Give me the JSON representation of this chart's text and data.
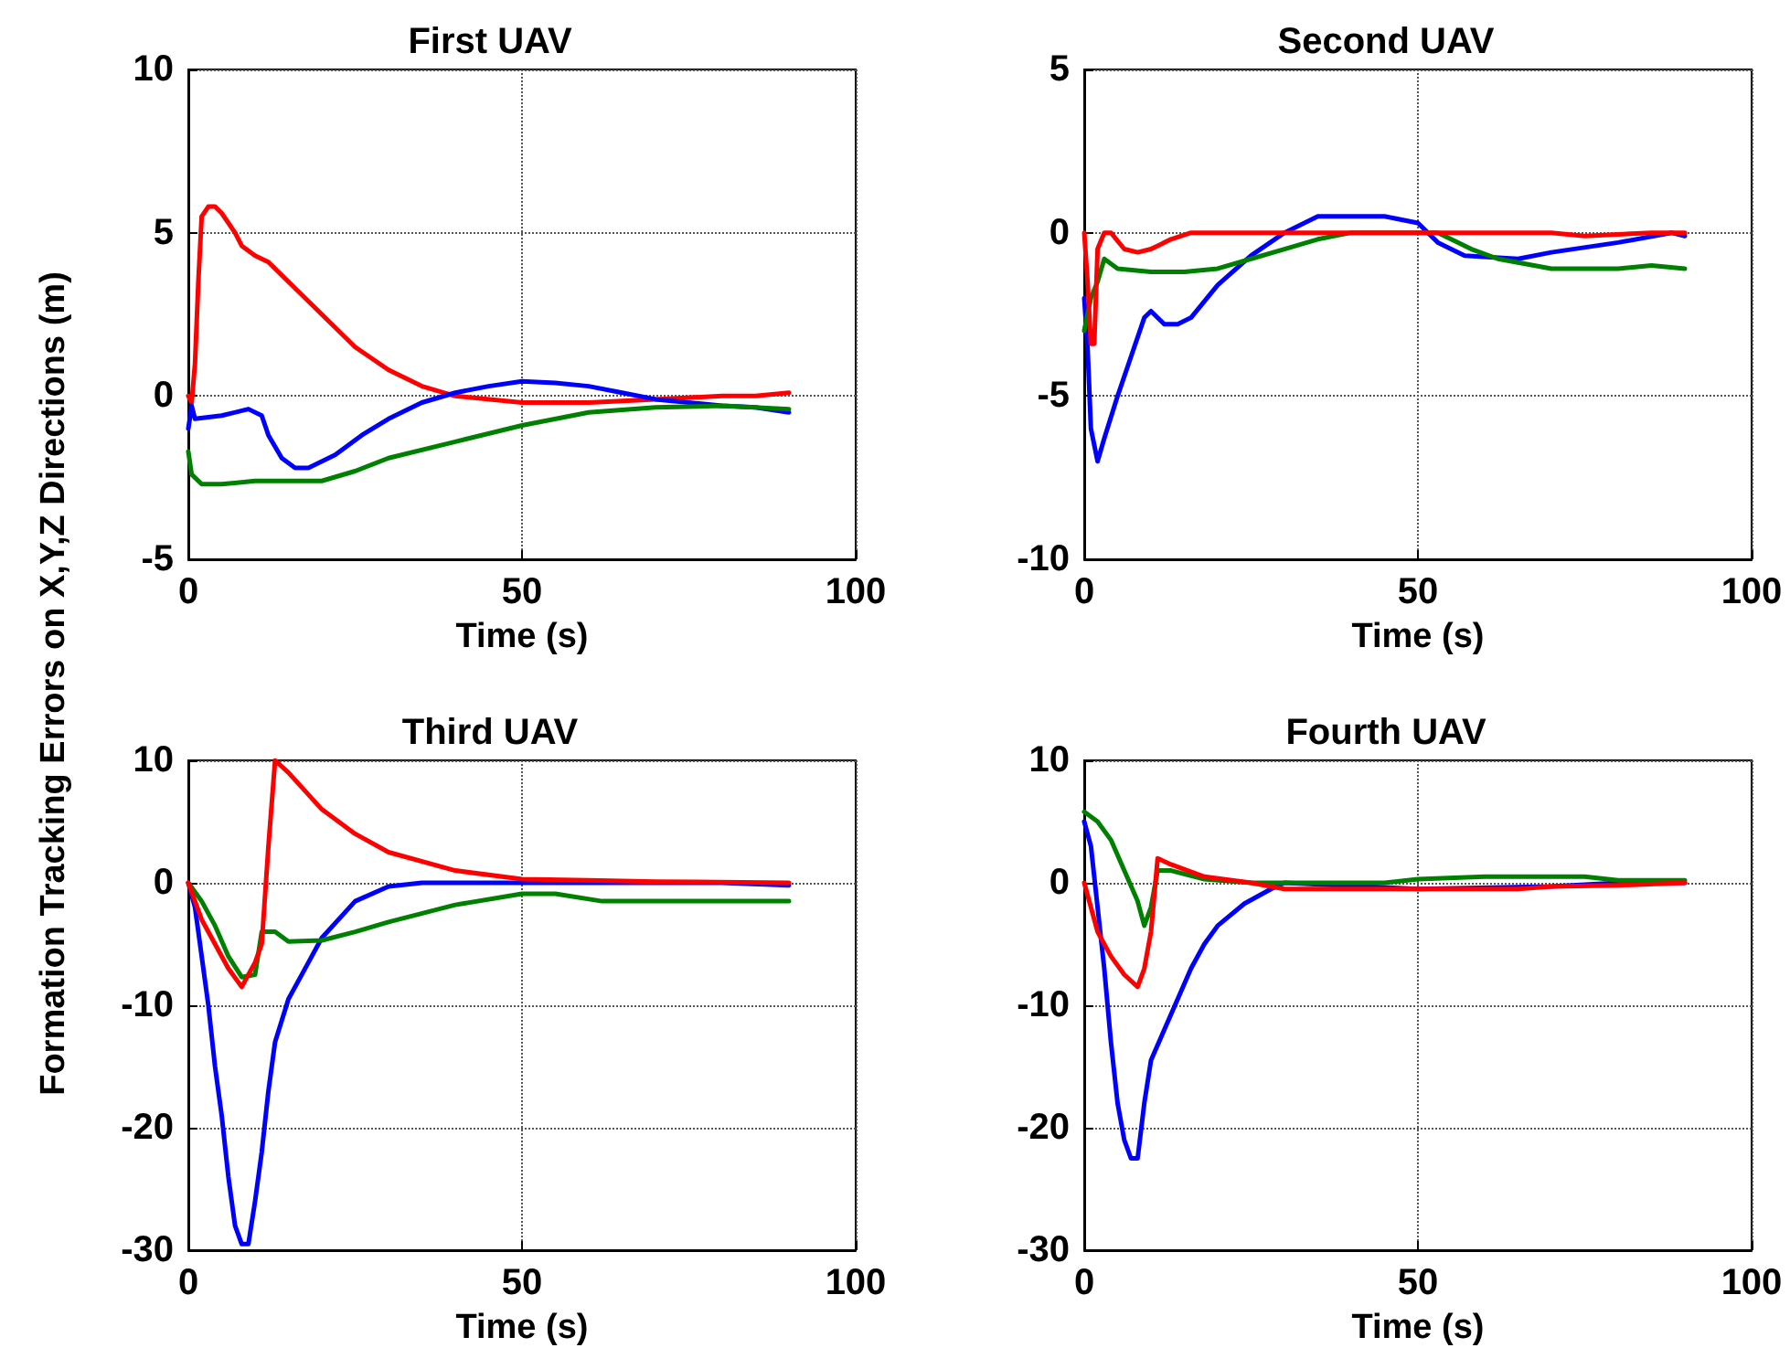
{
  "chart_data": [
    {
      "type": "line",
      "title": "First UAV",
      "xlabel": "Time (s)",
      "ylabel": "Formation Tracking Errors on X,Y,Z Directions (m)",
      "xlim": [
        0,
        100
      ],
      "xticks": [
        0,
        50,
        100
      ],
      "ylim": [
        -5,
        10
      ],
      "yticks": [
        -5,
        0,
        5,
        10
      ],
      "grid": true,
      "marker": "none",
      "line_style": "solid",
      "series": [
        {
          "color": "#ff0000",
          "x": [
            0,
            0.5,
            1,
            1.5,
            2,
            3,
            4,
            5,
            7,
            8,
            10,
            12,
            15,
            20,
            25,
            30,
            35,
            40,
            50,
            60,
            70,
            80,
            85,
            90
          ],
          "values": [
            0,
            -0.2,
            1,
            3.5,
            5.5,
            5.8,
            5.8,
            5.6,
            5,
            4.6,
            4.3,
            4.1,
            3.5,
            2.5,
            1.5,
            0.8,
            0.3,
            0,
            -0.2,
            -0.2,
            -0.1,
            0,
            0,
            0.1
          ]
        },
        {
          "color": "#0000ff",
          "x": [
            0,
            0.5,
            1,
            5,
            9,
            11,
            12,
            14,
            16,
            18,
            22,
            26,
            30,
            35,
            40,
            45,
            50,
            55,
            60,
            65,
            70,
            80,
            85,
            90
          ],
          "values": [
            -1,
            -0.3,
            -0.7,
            -0.6,
            -0.4,
            -0.6,
            -1.2,
            -1.9,
            -2.2,
            -2.2,
            -1.8,
            -1.2,
            -0.7,
            -0.2,
            0.1,
            0.3,
            0.45,
            0.4,
            0.3,
            0.1,
            -0.1,
            -0.3,
            -0.35,
            -0.5
          ]
        },
        {
          "color": "#008000",
          "x": [
            0,
            0.5,
            2,
            5,
            10,
            15,
            20,
            25,
            30,
            40,
            50,
            60,
            70,
            80,
            90
          ],
          "values": [
            -1.7,
            -2.4,
            -2.7,
            -2.7,
            -2.6,
            -2.6,
            -2.6,
            -2.3,
            -1.9,
            -1.4,
            -0.9,
            -0.5,
            -0.35,
            -0.3,
            -0.4
          ]
        }
      ]
    },
    {
      "type": "line",
      "title": "Second UAV",
      "xlabel": "Time (s)",
      "xlim": [
        0,
        100
      ],
      "xticks": [
        0,
        50,
        100
      ],
      "ylim": [
        -10,
        5
      ],
      "yticks": [
        -10,
        -5,
        0,
        5
      ],
      "grid": true,
      "marker": "none",
      "line_style": "solid",
      "series": [
        {
          "color": "#0000ff",
          "x": [
            0,
            0.5,
            1,
            2,
            3,
            5,
            7,
            9,
            10,
            12,
            14,
            16,
            20,
            25,
            30,
            35,
            40,
            45,
            50,
            53,
            57,
            65,
            70,
            80,
            88,
            90
          ],
          "values": [
            -2,
            -3.5,
            -6,
            -7,
            -6.3,
            -5,
            -3.8,
            -2.6,
            -2.4,
            -2.8,
            -2.8,
            -2.6,
            -1.6,
            -0.7,
            0,
            0.5,
            0.5,
            0.5,
            0.3,
            -0.3,
            -0.7,
            -0.8,
            -0.6,
            -0.3,
            0,
            -0.1
          ]
        },
        {
          "color": "#008000",
          "x": [
            0,
            1,
            2,
            3,
            5,
            10,
            15,
            20,
            25,
            30,
            35,
            40,
            50,
            53,
            58,
            62,
            70,
            80,
            85,
            90
          ],
          "values": [
            -3,
            -2,
            -1.5,
            -0.8,
            -1.1,
            -1.2,
            -1.2,
            -1.1,
            -0.8,
            -0.5,
            -0.2,
            0,
            0,
            0,
            -0.5,
            -0.8,
            -1.1,
            -1.1,
            -1,
            -1.1
          ]
        },
        {
          "color": "#ff0000",
          "x": [
            0,
            0.5,
            1,
            1.5,
            2,
            3,
            4,
            6,
            8,
            10,
            13,
            16,
            25,
            35,
            50,
            60,
            70,
            75,
            85,
            90
          ],
          "values": [
            0,
            -1.5,
            -3.4,
            -3.4,
            -0.5,
            0,
            0,
            -0.5,
            -0.6,
            -0.5,
            -0.2,
            0,
            0,
            0,
            0,
            0,
            0,
            -0.1,
            0,
            0
          ]
        }
      ]
    },
    {
      "type": "line",
      "title": "Third UAV",
      "xlabel": "Time (s)",
      "xlim": [
        0,
        100
      ],
      "xticks": [
        0,
        50,
        100
      ],
      "ylim": [
        -30,
        10
      ],
      "yticks": [
        -30,
        -20,
        -10,
        0,
        10
      ],
      "grid": true,
      "marker": "none",
      "line_style": "solid",
      "series": [
        {
          "color": "#0000ff",
          "x": [
            0,
            1,
            2,
            3,
            4,
            5,
            6,
            7,
            8,
            9,
            10,
            11,
            12,
            13,
            15,
            18,
            20,
            25,
            30,
            35,
            50,
            60,
            80,
            90
          ],
          "values": [
            0,
            -2,
            -6,
            -10,
            -15,
            -19,
            -24,
            -28,
            -29.5,
            -29.5,
            -26,
            -22,
            -17,
            -13,
            -9.5,
            -6.5,
            -4.5,
            -1.5,
            -0.3,
            0,
            0,
            0,
            0,
            -0.2
          ]
        },
        {
          "color": "#008000",
          "x": [
            0,
            2,
            4,
            6,
            8,
            10,
            11,
            13,
            15,
            20,
            25,
            30,
            40,
            50,
            55,
            62,
            70,
            90
          ],
          "values": [
            0,
            -1.5,
            -3.5,
            -6,
            -7.7,
            -7.5,
            -4,
            -4,
            -4.8,
            -4.7,
            -4,
            -3.2,
            -1.8,
            -0.9,
            -0.9,
            -1.5,
            -1.5,
            -1.5
          ]
        },
        {
          "color": "#ff0000",
          "x": [
            0,
            2,
            4,
            6,
            8,
            10,
            11,
            12,
            13,
            15,
            20,
            25,
            30,
            40,
            50,
            60,
            70,
            90
          ],
          "values": [
            0,
            -3,
            -5,
            -7,
            -8.5,
            -6.5,
            -5,
            3,
            10,
            9,
            6,
            4,
            2.5,
            1,
            0.3,
            0.2,
            0.1,
            0
          ]
        }
      ]
    },
    {
      "type": "line",
      "title": "Fourth UAV",
      "xlabel": "Time (s)",
      "xlim": [
        0,
        100
      ],
      "xticks": [
        0,
        50,
        100
      ],
      "ylim": [
        -30,
        10
      ],
      "yticks": [
        -30,
        -20,
        -10,
        0,
        10
      ],
      "grid": true,
      "marker": "none",
      "line_style": "solid",
      "series": [
        {
          "color": "#0000ff",
          "x": [
            0,
            1,
            2,
            3,
            4,
            5,
            6,
            7,
            8,
            9,
            10,
            12,
            14,
            16,
            18,
            20,
            24,
            28,
            30,
            50,
            70,
            80,
            90
          ],
          "values": [
            5,
            3,
            -2,
            -7,
            -13,
            -18,
            -21,
            -22.5,
            -22.5,
            -18,
            -14.5,
            -12,
            -9.5,
            -7,
            -5,
            -3.5,
            -1.7,
            -0.5,
            0,
            -0.5,
            -0.3,
            0,
            0
          ]
        },
        {
          "color": "#008000",
          "x": [
            0,
            2,
            4,
            6,
            8,
            9,
            10,
            11,
            13,
            18,
            25,
            45,
            50,
            60,
            75,
            80,
            90
          ],
          "values": [
            5.8,
            5,
            3.5,
            1,
            -1.5,
            -3.5,
            -2,
            1,
            1,
            0.3,
            0,
            0,
            0.3,
            0.5,
            0.5,
            0.2,
            0.2
          ]
        },
        {
          "color": "#ff0000",
          "x": [
            0,
            2,
            4,
            6,
            8,
            9,
            10,
            11,
            13,
            18,
            25,
            30,
            50,
            65,
            70,
            80,
            90
          ],
          "values": [
            0,
            -4,
            -6,
            -7.5,
            -8.5,
            -7,
            -4,
            2,
            1.5,
            0.5,
            0,
            -0.5,
            -0.5,
            -0.5,
            -0.3,
            -0.2,
            0
          ]
        }
      ]
    }
  ]
}
